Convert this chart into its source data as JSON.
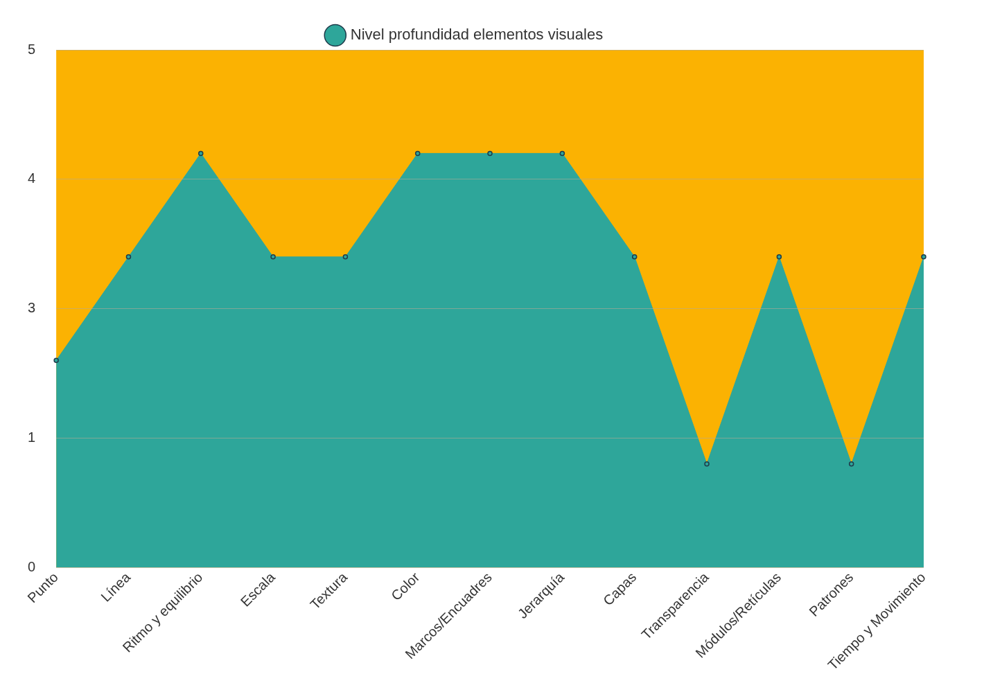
{
  "chart_data": {
    "type": "area",
    "categories": [
      "Punto",
      "Línea",
      "Ritmo y equilibrio",
      "Escala",
      "Textura",
      "Color",
      "Marcos/Encuadres",
      "Jerarquía",
      "Capas",
      "Transparencia",
      "Módulos/Retículas",
      "Patrones",
      "Tiempo y Movimiento"
    ],
    "series": [
      {
        "name": "Nivel profundidad elementos visuales",
        "color": "#2ea69a",
        "values": [
          2,
          3,
          4,
          3,
          3,
          4,
          4,
          4,
          3,
          1,
          3,
          1,
          3
        ]
      }
    ],
    "ylim": [
      0,
      5
    ],
    "yticks": [
      0,
      {
        "value": 1.25,
        "label": "1"
      },
      {
        "value": 2.5,
        "label": "3"
      },
      {
        "value": 3.75,
        "label": "4"
      },
      5
    ],
    "bands": [
      {
        "axis": "y",
        "from": 0,
        "to": 5,
        "color": "#fbb202"
      }
    ],
    "grid": "y",
    "legend": "top",
    "marker": "circle"
  }
}
